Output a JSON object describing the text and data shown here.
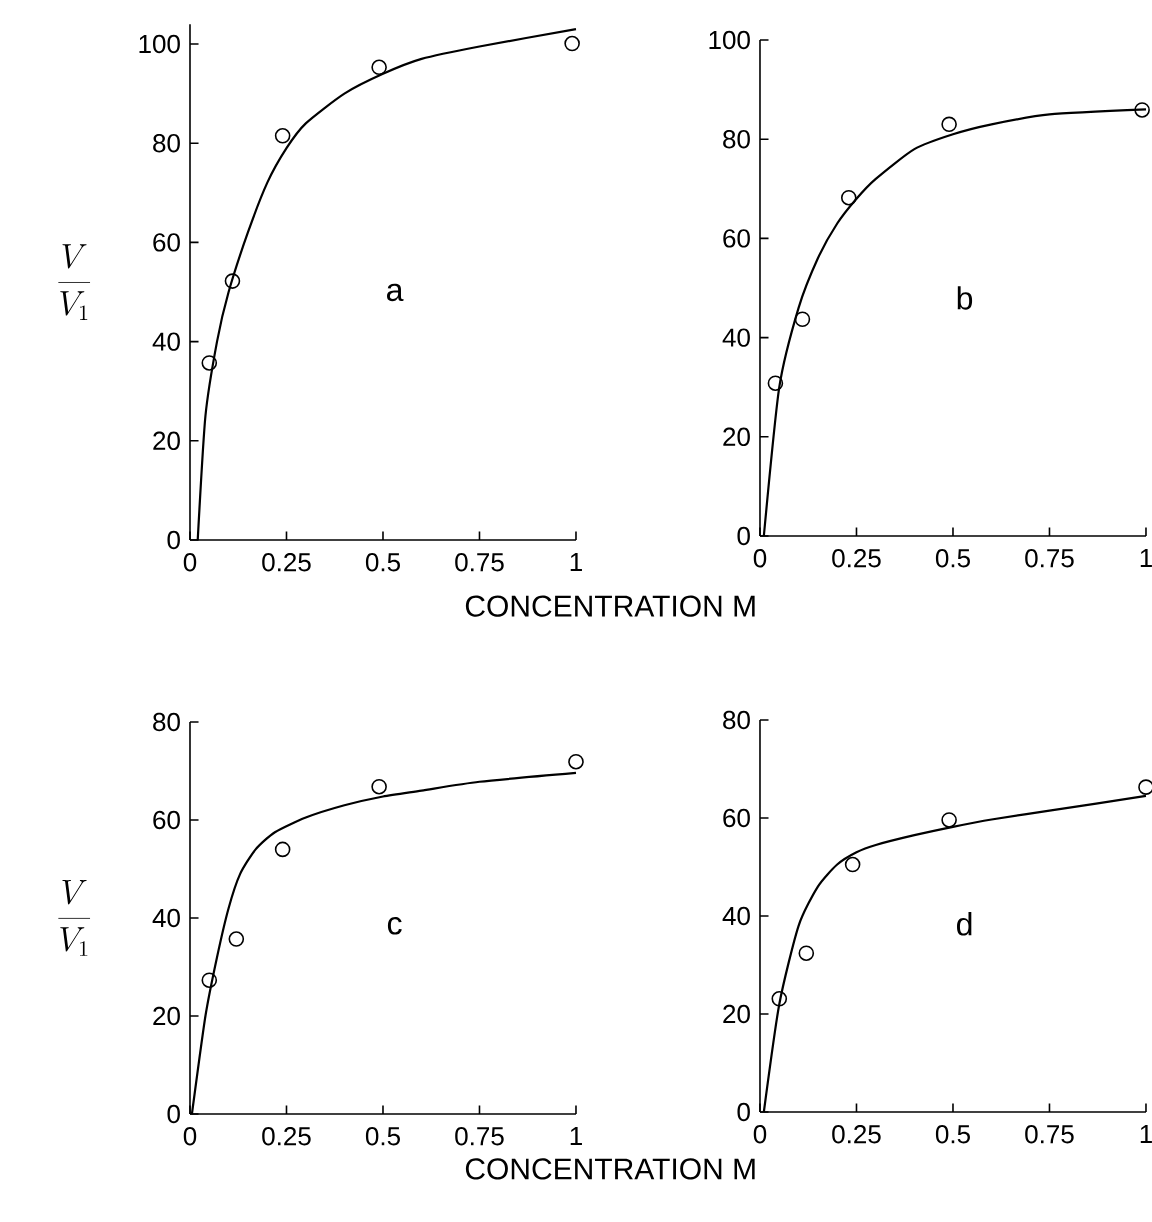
{
  "chart_data": [
    {
      "type": "scatter",
      "ylabel": "\\frac{V}{V_{1}}",
      "xlabel": "CONCENTRATION M",
      "annotations": [
        "a"
      ],
      "xlim": [
        0,
        1
      ],
      "ylim": [
        0,
        104
      ],
      "xticks": [
        0,
        0.25,
        0.5,
        0.75,
        1
      ],
      "yticks": [
        0,
        20,
        40,
        60,
        80,
        100
      ],
      "series": [
        {
          "marker": "circle",
          "color": "#000000",
          "x": [
            0.05,
            0.11,
            0.24,
            0.49,
            0.99
          ],
          "values": [
            35.7,
            52.2,
            81.5,
            95.3,
            100.1
          ]
        },
        {
          "type": "line",
          "marker": "none",
          "line_style": "solid",
          "color": "#000000",
          "x": [
            0.02,
            0.04,
            0.07,
            0.1,
            0.15,
            0.2,
            0.25,
            0.3,
            0.4,
            0.5,
            0.6,
            0.75,
            1
          ],
          "values": [
            0,
            25,
            40,
            50,
            62,
            72,
            79,
            84,
            90,
            94,
            97,
            99.5,
            103
          ]
        }
      ]
    },
    {
      "type": "scatter",
      "annotations": [
        "b"
      ],
      "xlim": [
        0,
        1
      ],
      "ylim": [
        0,
        100
      ],
      "xticks": [
        0,
        0.25,
        0.5,
        0.75,
        1
      ],
      "yticks": [
        0,
        20,
        40,
        60,
        80,
        100
      ],
      "series": [
        {
          "marker": "circle",
          "color": "#000000",
          "x": [
            0.04,
            0.11,
            0.23,
            0.49,
            0.99
          ],
          "values": [
            30.8,
            43.7,
            68.2,
            83,
            85.9
          ]
        },
        {
          "type": "line",
          "marker": "none",
          "line_style": "solid",
          "color": "#000000",
          "x": [
            0.01,
            0.05,
            0.1,
            0.15,
            0.2,
            0.25,
            0.3,
            0.4,
            0.5,
            0.6,
            0.75,
            1
          ],
          "values": [
            0,
            30,
            46,
            56,
            63,
            68,
            72,
            78,
            81,
            83,
            85,
            86
          ]
        }
      ]
    },
    {
      "type": "scatter",
      "ylabel": "\\frac{V}{V_{1}}",
      "xlabel": "CONCENTRATION M",
      "annotations": [
        "c"
      ],
      "xlim": [
        0,
        1
      ],
      "ylim": [
        0,
        80
      ],
      "xticks": [
        0,
        0.25,
        0.5,
        0.75,
        1
      ],
      "yticks": [
        0,
        20,
        40,
        60,
        80
      ],
      "series": [
        {
          "marker": "circle",
          "color": "#000000",
          "x": [
            0.05,
            0.12,
            0.24,
            0.49,
            1
          ],
          "values": [
            27.3,
            35.7,
            54,
            66.8,
            71.9
          ]
        },
        {
          "type": "line",
          "marker": "none",
          "line_style": "solid",
          "color": "#000000",
          "x": [
            0.005,
            0.04,
            0.07,
            0.1,
            0.13,
            0.17,
            0.22,
            0.3,
            0.4,
            0.5,
            0.6,
            0.75,
            1
          ],
          "values": [
            0,
            20,
            32,
            42,
            49,
            54,
            57.5,
            60.5,
            63,
            64.8,
            66,
            67.8,
            69.6
          ]
        }
      ]
    },
    {
      "type": "scatter",
      "annotations": [
        "d"
      ],
      "xlim": [
        0,
        1
      ],
      "ylim": [
        0,
        80
      ],
      "xticks": [
        0,
        0.25,
        0.5,
        0.75,
        1
      ],
      "yticks": [
        0,
        20,
        40,
        60,
        80
      ],
      "series": [
        {
          "marker": "circle",
          "color": "#000000",
          "x": [
            0.05,
            0.12,
            0.24,
            0.49,
            1
          ],
          "values": [
            23.1,
            32.4,
            50.5,
            59.6,
            66.3
          ]
        },
        {
          "type": "line",
          "marker": "none",
          "line_style": "solid",
          "color": "#000000",
          "x": [
            0.01,
            0.05,
            0.1,
            0.15,
            0.2,
            0.25,
            0.3,
            0.4,
            0.5,
            0.6,
            0.75,
            1
          ],
          "values": [
            0,
            22,
            38,
            46,
            50.5,
            53,
            54.5,
            56.5,
            58.2,
            59.7,
            61.5,
            64.5
          ]
        }
      ]
    }
  ]
}
